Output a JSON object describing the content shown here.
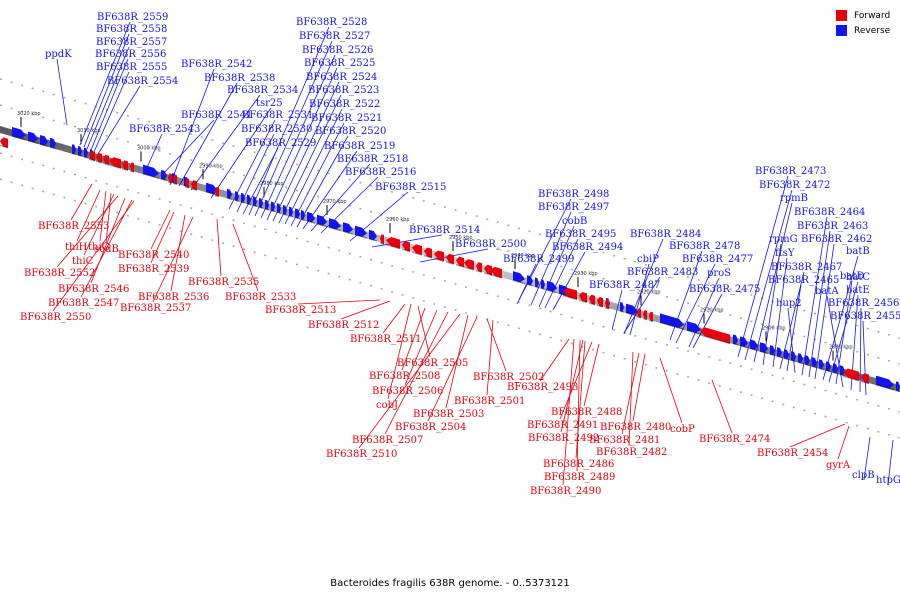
{
  "caption": "Bacteroides fragilis 638R genome. - 0..5373121",
  "legend": [
    {
      "label": "Forward",
      "color": "#e8000c"
    },
    {
      "label": "Reverse",
      "color": "#1414f0"
    }
  ],
  "colors": {
    "forward": "#e8000c",
    "reverse": "#1414f0",
    "axis": "#777777"
  },
  "scale_ticks": [
    "3020 kbp",
    "3010 kbp",
    "3000 kbp",
    "2990 kbp",
    "2980 kbp",
    "2970 kbp",
    "2960 kbp",
    "2950 kbp",
    "2940 kbp",
    "2930 kbp",
    "2920 kbp",
    "2910 kbp",
    "2900 kbp",
    "2890 kbp"
  ],
  "reverse_labels": [
    "ppdK",
    "BF638R_2559",
    "BF638R_2558",
    "BF638R_2557",
    "BF638R_2556",
    "BF638R_2555",
    "BF638R_2554",
    "BF638R_2543",
    "BF638R_2542",
    "BF638R_2538",
    "BF638R_2534",
    "tsr25",
    "BF638R_2541",
    "BF638R_2531",
    "BF638R_2530",
    "BF638R_2529",
    "BF638R_2528",
    "BF638R_2527",
    "BF638R_2526",
    "BF638R_2525",
    "BF638R_2524",
    "BF638R_2523",
    "BF638R_2522",
    "BF638R_2521",
    "BF638R_2520",
    "BF638R_2519",
    "BF638R_2518",
    "BF638R_2516",
    "BF638R_2515",
    "BF638R_2514",
    "BF638R_2500",
    "BF638R_2498",
    "BF638R_2497",
    "cobB",
    "BF638R_2495",
    "BF638R_2494",
    "BF638R_2499",
    "BF638R_2484",
    "cbiP",
    "BF638R_2483",
    "BF638R_2487",
    "BF638R_2478",
    "BF638R_2477",
    "proS",
    "BF638R_2475",
    "BF638R_2473",
    "BF638R_2472",
    "rpmB",
    "rpmG",
    "ftsY",
    "BF638R_2467",
    "BF638R_2465",
    "hup2",
    "BF638R_2464",
    "BF638R_2463",
    "BF638R_2462",
    "batB",
    "batC",
    "batD",
    "batA",
    "batE",
    "BF638R_2456",
    "BF638R_2455",
    "clpB",
    "htpG"
  ],
  "forward_labels": [
    "BF638R_2553",
    "thiH",
    "thiG",
    "thiC",
    "sodB",
    "BF638R_2552",
    "BF638R_2546",
    "BF638R_2547",
    "BF638R_2550",
    "BF638R_2540",
    "BF638R_2539",
    "BF638R_2535",
    "BF638R_2536",
    "BF638R_2537",
    "BF638R_2533",
    "BF638R_2513",
    "BF638R_2512",
    "BF638R_2511",
    "BF638R_2505",
    "BF638R_2508",
    "BF638R_2506",
    "cobJ",
    "BF638R_2507",
    "BF638R_2510",
    "BF638R_2502",
    "BF638R_2503",
    "BF638R_2504",
    "BF638R_2501",
    "BF638R_2493",
    "BF638R_2488",
    "BF638R_2491",
    "BF638R_2492",
    "BF638R_2486",
    "BF638R_2489",
    "BF638R_2490",
    "BF638R_2480",
    "BF638R_2481",
    "BF638R_2482",
    "cobP",
    "BF638R_2474",
    "BF638R_2454",
    "gyrA"
  ]
}
